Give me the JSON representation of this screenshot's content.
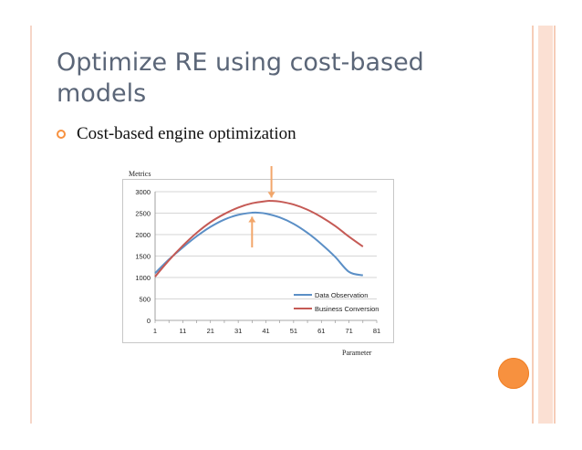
{
  "slide": {
    "title": "Optimize RE using cost-based models",
    "bullet": "Cost-based engine optimization"
  },
  "colors": {
    "accent": "#f7913f",
    "data_observation": "#5b8fc6",
    "business_conversion": "#c55a55",
    "arrow": "#f2a66a"
  },
  "chart_data": {
    "type": "line",
    "xlabel": "Parameter",
    "ylabel": "Metrics",
    "ylim": [
      0,
      3000
    ],
    "xlim": [
      1,
      81
    ],
    "xticks": [
      1,
      11,
      21,
      31,
      41,
      51,
      61,
      71,
      81
    ],
    "yticks": [
      0,
      500,
      1000,
      1500,
      2000,
      2500,
      3000
    ],
    "grid": "horizontal",
    "legend": "bottom-right",
    "series": [
      {
        "name": "Data Observation",
        "color": "#5b8fc6",
        "x": [
          1,
          6,
          11,
          16,
          21,
          26,
          31,
          36,
          38,
          41,
          46,
          51,
          56,
          61,
          66,
          71,
          76
        ],
        "y": [
          1100,
          1420,
          1700,
          1960,
          2180,
          2350,
          2460,
          2510,
          2510,
          2490,
          2400,
          2250,
          2040,
          1780,
          1480,
          1130,
          1050
        ]
      },
      {
        "name": "Business Conversion",
        "color": "#c55a55",
        "x": [
          1,
          6,
          11,
          16,
          21,
          26,
          31,
          36,
          41,
          43,
          46,
          51,
          56,
          61,
          66,
          71,
          76
        ],
        "y": [
          1020,
          1400,
          1740,
          2040,
          2290,
          2480,
          2630,
          2730,
          2780,
          2785,
          2770,
          2700,
          2580,
          2410,
          2200,
          1950,
          1720
        ]
      }
    ],
    "annotations": [
      {
        "type": "arrow-down",
        "x": 43,
        "y_from": 3400,
        "y_to": 2800
      },
      {
        "type": "arrow-up",
        "x": 36,
        "y_from": 1700,
        "y_to": 2480
      }
    ]
  }
}
